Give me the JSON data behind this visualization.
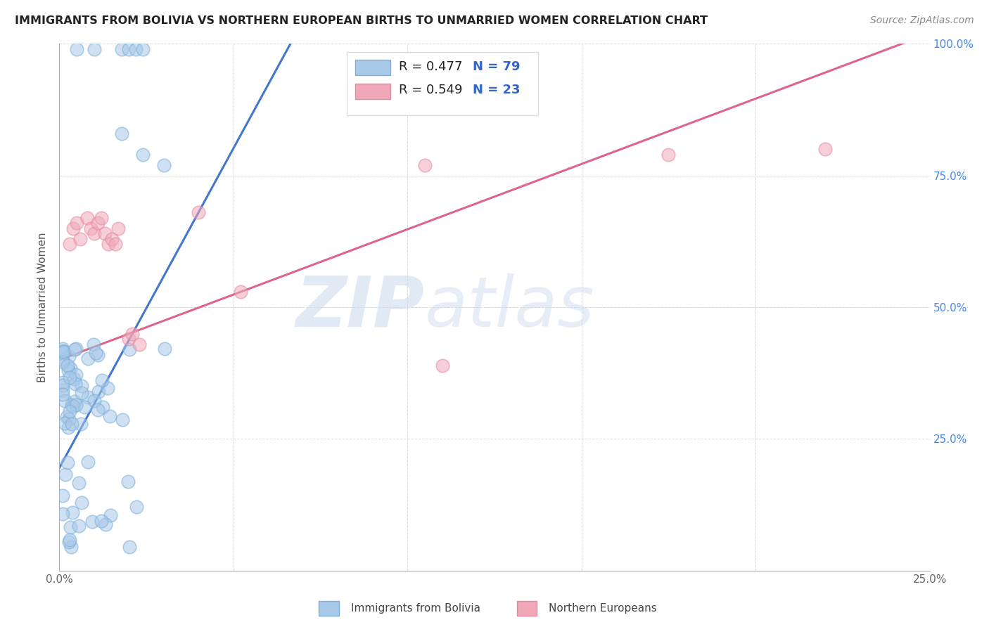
{
  "title": "IMMIGRANTS FROM BOLIVIA VS NORTHERN EUROPEAN BIRTHS TO UNMARRIED WOMEN CORRELATION CHART",
  "source": "Source: ZipAtlas.com",
  "ylabel": "Births to Unmarried Women",
  "legend_blue_r": "R = 0.477",
  "legend_blue_n": "N = 79",
  "legend_pink_r": "R = 0.549",
  "legend_pink_n": "N = 23",
  "legend_label_blue": "Immigrants from Bolivia",
  "legend_label_pink": "Northern Europeans",
  "blue_color": "#a8c8e8",
  "pink_color": "#f0a8b8",
  "blue_edge_color": "#7ab0d8",
  "pink_edge_color": "#e888a0",
  "trend_blue_color": "#4477cc",
  "trend_pink_color": "#dd6688",
  "blue_trend_x0": 0.0,
  "blue_trend_y0": 0.195,
  "blue_trend_x1": 0.068,
  "blue_trend_y1": 1.02,
  "pink_trend_x0": 0.0,
  "pink_trend_y0": 0.4,
  "pink_trend_x1": 0.25,
  "pink_trend_y1": 1.02,
  "xlim": [
    0.0,
    0.25
  ],
  "ylim": [
    0.0,
    1.0
  ],
  "watermark_zip": "ZIP",
  "watermark_atlas": "atlas",
  "background_color": "#ffffff",
  "grid_color": "#cccccc",
  "right_axis_color": "#4488ee",
  "title_color": "#222222",
  "source_color": "#888888",
  "ylabel_color": "#555555"
}
